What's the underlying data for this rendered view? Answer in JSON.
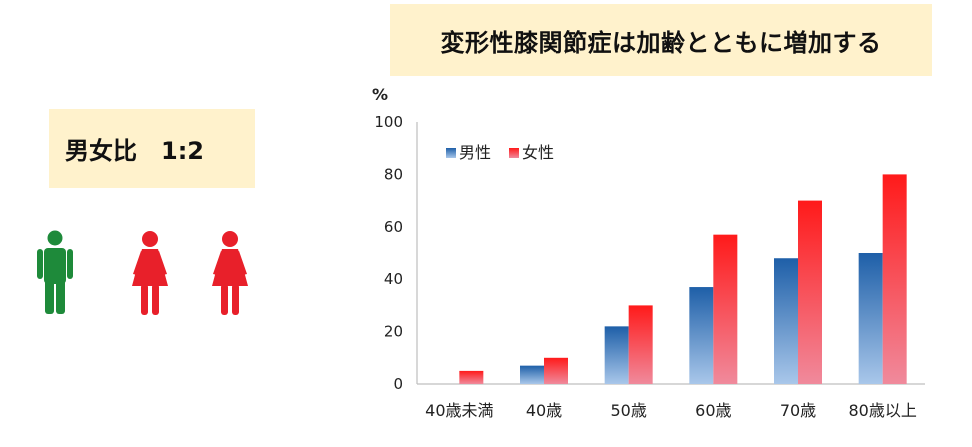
{
  "title": "変形性膝関節症は加齢とともに増加する",
  "ratio_label": "男女比　1:2",
  "colors": {
    "male_top": "#1e5fa8",
    "male_bottom": "#a9c7ea",
    "female_top": "#ff1a1a",
    "female_bottom": "#f08a9c",
    "panel_bg": "#fff2cc",
    "male_icon": "#1e8a3a",
    "female_icon": "#e8202a"
  },
  "icons": [
    "male-person-icon",
    "female-person-icon",
    "female-person-icon"
  ],
  "chart_data": {
    "type": "bar",
    "title": "",
    "ylabel": "%",
    "xlabel": "",
    "ylim": [
      0,
      100
    ],
    "yticks": [
      0,
      20,
      40,
      60,
      80,
      100
    ],
    "categories": [
      "40歳未満",
      "40歳",
      "50歳",
      "60歳",
      "70歳",
      "80歳以上"
    ],
    "series": [
      {
        "name": "男性",
        "values": [
          0,
          7,
          22,
          37,
          48,
          50
        ]
      },
      {
        "name": "女性",
        "values": [
          5,
          10,
          30,
          57,
          70,
          80
        ]
      }
    ],
    "legend_position": "top-left",
    "grid": false
  }
}
